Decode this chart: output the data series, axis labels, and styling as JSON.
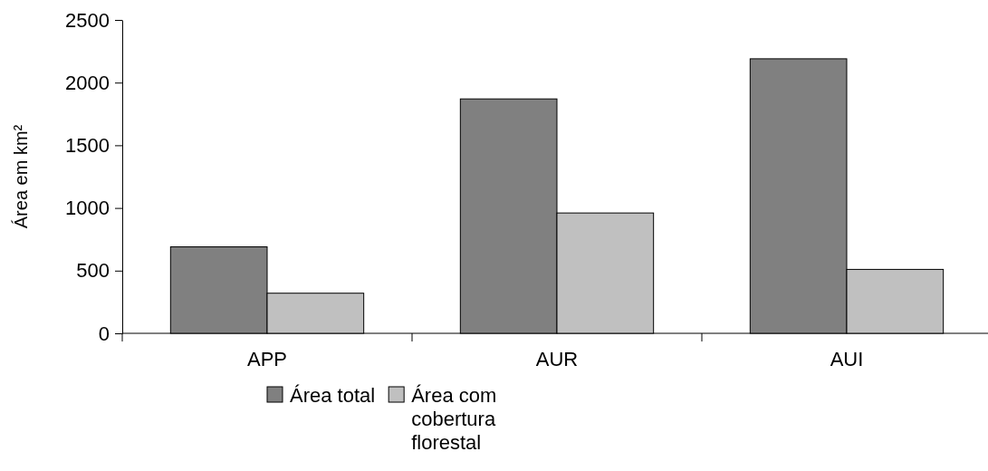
{
  "chart_data": {
    "type": "bar",
    "ylabel": "Área em km²",
    "categories": [
      "APP",
      "AUR",
      "AUI"
    ],
    "series": [
      {
        "name": "Área total",
        "color": "#808080",
        "values": [
          690,
          1870,
          2190
        ]
      },
      {
        "name": "Área com cobertura florestal",
        "color": "#c0c0c0",
        "values": [
          320,
          960,
          510
        ]
      }
    ],
    "ylim": [
      0,
      2500
    ],
    "yticks": [
      0,
      500,
      1000,
      1500,
      2000,
      2500
    ],
    "legend": "bottom",
    "grid": false
  }
}
